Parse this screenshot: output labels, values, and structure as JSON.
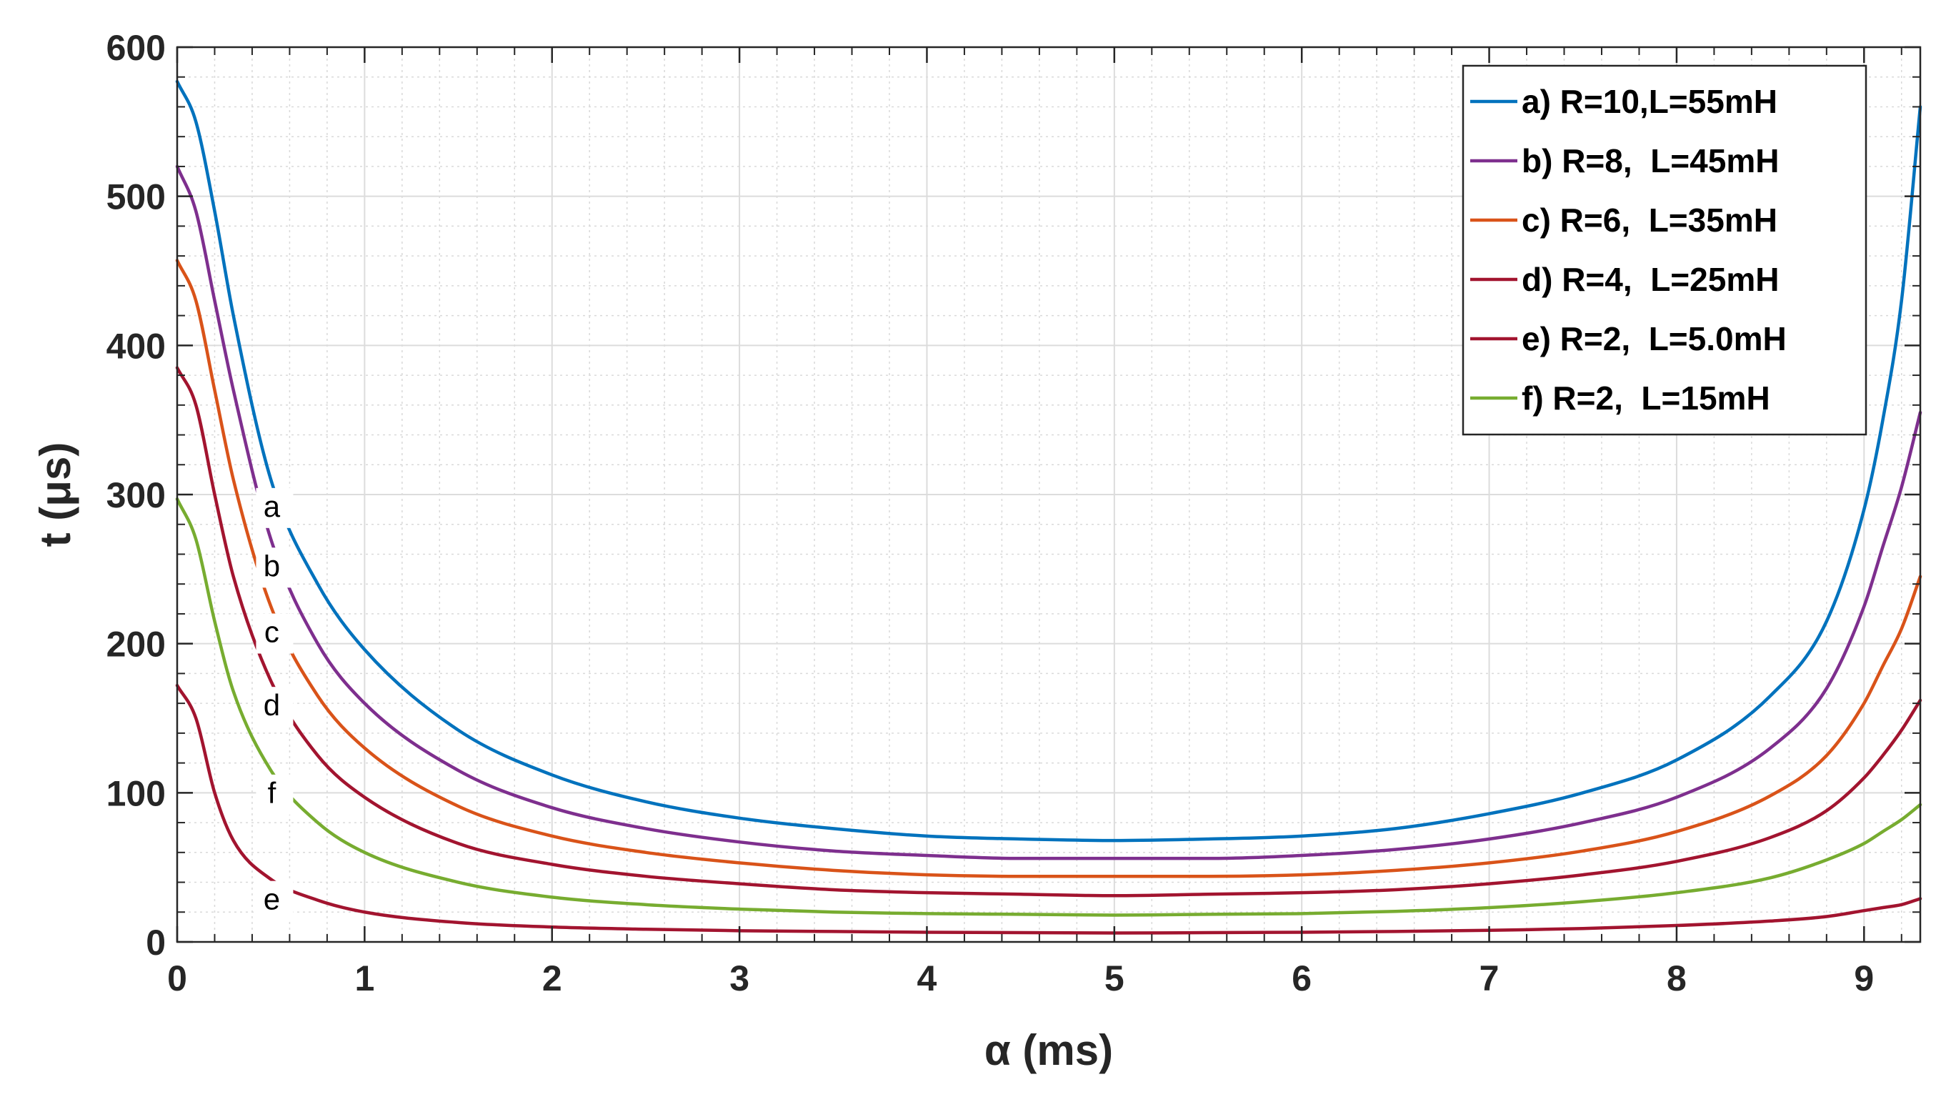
{
  "chart_data": {
    "type": "line",
    "xlabel": "α (ms)",
    "ylabel": "t (μs)",
    "xlim": [
      0,
      9.3
    ],
    "ylim": [
      0,
      600
    ],
    "xticks": [
      0,
      1,
      2,
      3,
      4,
      5,
      6,
      7,
      8,
      9
    ],
    "xtick_labels": [
      "0",
      "1",
      "2",
      "3",
      "4",
      "5",
      "6",
      "7",
      "8",
      "9"
    ],
    "yticks": [
      0,
      100,
      200,
      300,
      400,
      500,
      600
    ],
    "ytick_labels": [
      "0",
      "100",
      "200",
      "300",
      "400",
      "500",
      "600"
    ],
    "grid": true,
    "minor_grid": true,
    "legend_position": "top-right",
    "x": [
      0,
      0.1,
      0.2,
      0.3,
      0.5,
      0.75,
      1,
      1.5,
      2,
      2.5,
      3,
      3.5,
      4,
      4.5,
      5,
      5.5,
      6,
      6.5,
      7,
      7.5,
      8,
      8.5,
      8.8,
      9,
      9.1,
      9.2,
      9.3
    ],
    "series": [
      {
        "name": "a) R=10,L=55mH",
        "label": "a",
        "color": "#0072BD",
        "values": [
          577,
          550,
          490,
          420,
          310,
          240,
          196,
          142,
          112,
          94,
          83,
          76,
          71,
          69,
          68,
          69,
          71,
          76,
          86,
          100,
          122,
          165,
          215,
          290,
          350,
          430,
          560
        ]
      },
      {
        "name": "b) R=8,  L=45mH",
        "label": "b",
        "color": "#7E2F8E",
        "values": [
          520,
          490,
          430,
          370,
          270,
          200,
          160,
          115,
          90,
          76,
          67,
          61,
          58,
          56,
          56,
          56,
          58,
          62,
          69,
          80,
          97,
          130,
          170,
          225,
          265,
          305,
          355
        ]
      },
      {
        "name": "c) R=6,  L=35mH",
        "label": "c",
        "color": "#D95319",
        "values": [
          457,
          430,
          370,
          310,
          225,
          165,
          130,
          91,
          71,
          60,
          53,
          48,
          45,
          44,
          44,
          44,
          45,
          48,
          53,
          61,
          74,
          98,
          125,
          160,
          185,
          210,
          245
        ]
      },
      {
        "name": "d) R=4,  L=25mH",
        "label": "d",
        "color": "#A2142F",
        "values": [
          385,
          360,
          300,
          245,
          175,
          125,
          97,
          66,
          52,
          44,
          39,
          35,
          33,
          32,
          31,
          32,
          33,
          35,
          39,
          45,
          54,
          70,
          88,
          110,
          125,
          142,
          162
        ]
      },
      {
        "name": "e) R=2,  L=5.0mH",
        "label": "e",
        "color": "#A2142F",
        "values": [
          172,
          150,
          100,
          68,
          42,
          28,
          20,
          13,
          10,
          8.5,
          7.5,
          7,
          6.5,
          6.2,
          6,
          6.2,
          6.5,
          7,
          7.8,
          9,
          11,
          14,
          17,
          21,
          23,
          25,
          29
        ]
      },
      {
        "name": "f) R=2,  L=15mH",
        "label": "f",
        "color": "#77AC30",
        "values": [
          297,
          270,
          215,
          168,
          115,
          80,
          60,
          40,
          30,
          25,
          22,
          20,
          19,
          18.5,
          18,
          18.5,
          19,
          20.5,
          23,
          27,
          33,
          43,
          55,
          66,
          74,
          82,
          92
        ]
      }
    ]
  }
}
